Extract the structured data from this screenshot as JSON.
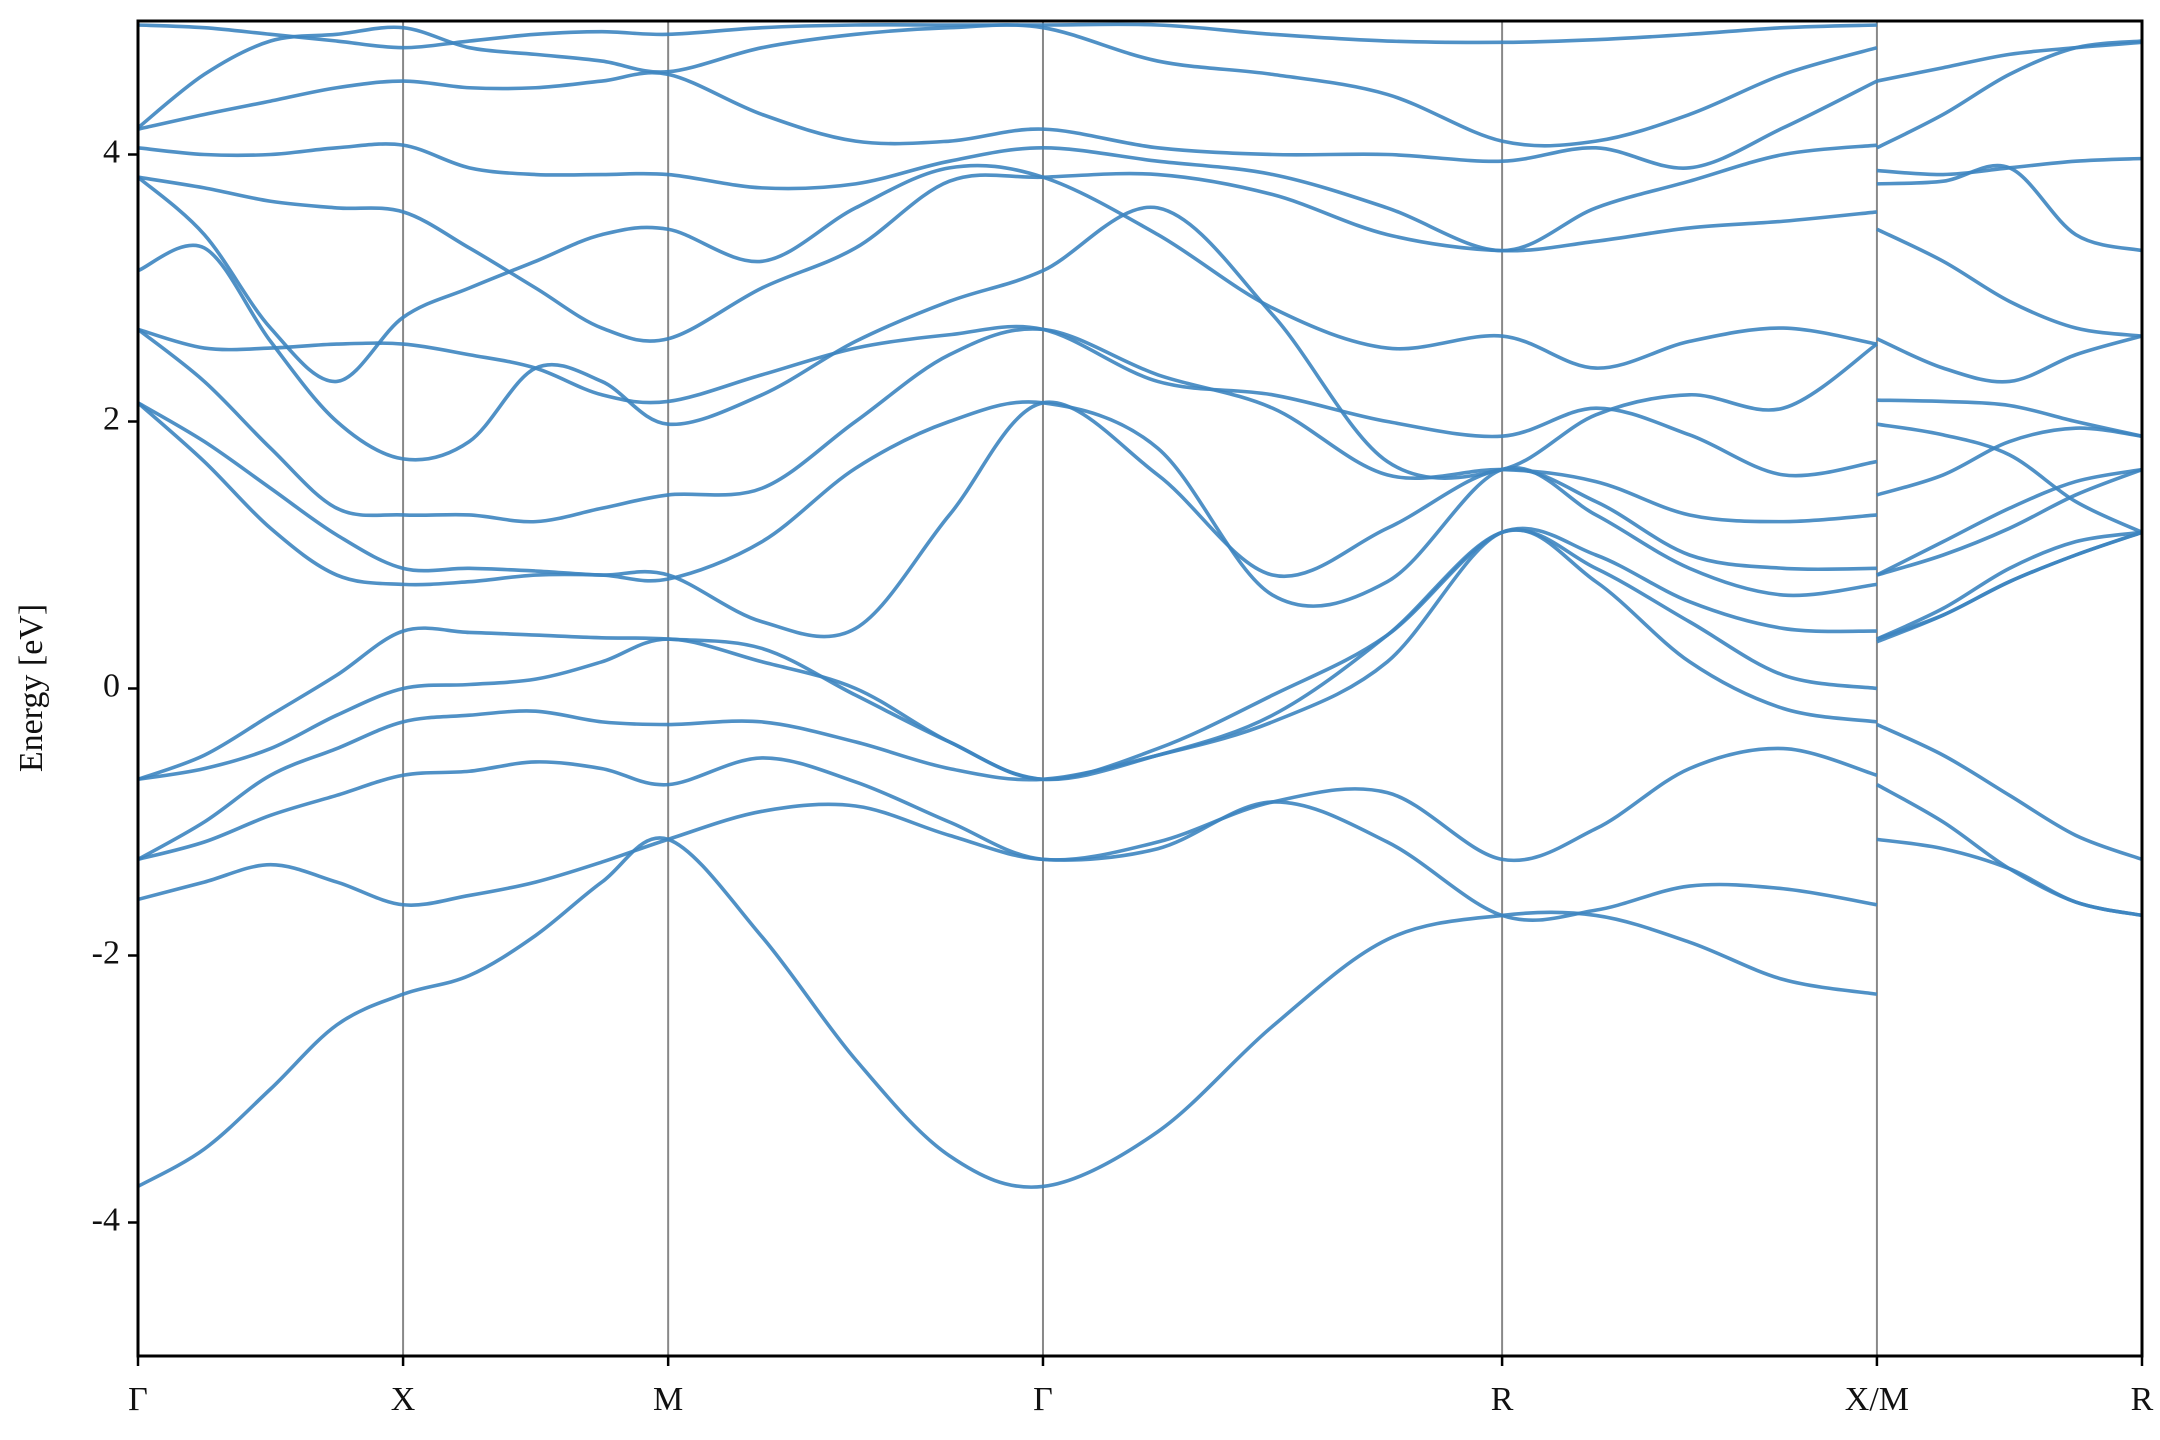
{
  "chart_data": {
    "type": "line",
    "y_label": "Energy [eV]",
    "color": "#3d85c0",
    "xlim": [
      0,
      7.56
    ],
    "ylim": [
      -5,
      5
    ],
    "xticks": [
      {
        "value": 0,
        "label": "Γ"
      },
      {
        "value": 1,
        "label": "X"
      },
      {
        "value": 2,
        "label": "M"
      },
      {
        "value": 3.414,
        "label": "Γ"
      },
      {
        "value": 5.146,
        "label": "R"
      },
      {
        "value": 6.56,
        "label": "X/M"
      },
      {
        "value": 7.56,
        "label": "R"
      }
    ],
    "yticks": [
      -4,
      -2,
      0,
      2,
      4
    ],
    "x_grid": true,
    "x": [
      0,
      0.25,
      0.5,
      0.75,
      1,
      1.25,
      1.5,
      1.75,
      2,
      2.354,
      2.707,
      3.061,
      3.414,
      3.847,
      4.28,
      4.713,
      5.146,
      5.5,
      5.853,
      6.207,
      6.56,
      6.56,
      6.56,
      6.81,
      7.06,
      7.31,
      7.56
    ],
    "series": [
      {
        "values": [
          -3.73,
          -3.45,
          -3.0,
          -2.52,
          -2.29,
          -2.15,
          -1.85,
          -1.45,
          -1.13,
          -1.86,
          -2.78,
          -3.5,
          -3.73,
          -3.32,
          -2.53,
          -1.88,
          -1.7,
          -1.7,
          -1.9,
          -2.18,
          -2.29,
          null,
          -1.13,
          -1.2,
          -1.35,
          -1.6,
          -1.7
        ]
      },
      {
        "values": [
          -1.58,
          -1.45,
          -1.32,
          -1.45,
          -1.62,
          -1.55,
          -1.45,
          -1.3,
          -1.13,
          -0.92,
          -0.88,
          -1.1,
          -1.28,
          -1.2,
          -0.85,
          -1.15,
          -1.7,
          -1.66,
          -1.48,
          -1.5,
          -1.62,
          null,
          -0.72,
          -1.0,
          -1.35,
          -1.6,
          -1.7
        ]
      },
      {
        "values": [
          -1.28,
          -1.15,
          -0.95,
          -0.8,
          -0.65,
          -0.62,
          -0.55,
          -0.6,
          -0.72,
          -0.52,
          -0.7,
          -1.0,
          -1.28,
          -1.15,
          -0.85,
          -0.78,
          -1.28,
          -1.05,
          -0.6,
          -0.45,
          -0.65,
          null,
          -0.27,
          -0.5,
          -0.8,
          -1.1,
          -1.28
        ]
      },
      {
        "values": [
          -1.28,
          -1.0,
          -0.65,
          -0.45,
          -0.25,
          -0.2,
          -0.17,
          -0.25,
          -0.27,
          -0.25,
          -0.4,
          -0.6,
          -0.68,
          -0.5,
          -0.25,
          0.2,
          1.17,
          0.8,
          0.2,
          -0.15,
          -0.25,
          null,
          0.35,
          0.55,
          0.8,
          1.0,
          1.17
        ]
      },
      {
        "values": [
          -0.68,
          -0.6,
          -0.45,
          -0.2,
          0.0,
          0.03,
          0.07,
          0.2,
          0.37,
          0.2,
          0.0,
          -0.4,
          -0.68,
          -0.5,
          -0.2,
          0.4,
          1.17,
          0.9,
          0.5,
          0.1,
          0.0,
          null,
          0.37,
          0.55,
          0.8,
          1.0,
          1.17
        ]
      },
      {
        "values": [
          -0.68,
          -0.5,
          -0.2,
          0.1,
          0.43,
          0.42,
          0.4,
          0.38,
          0.37,
          0.3,
          -0.05,
          -0.4,
          -0.68,
          -0.45,
          -0.05,
          0.4,
          1.17,
          1.0,
          0.65,
          0.45,
          0.43,
          null,
          0.37,
          0.6,
          0.9,
          1.1,
          1.17
        ]
      },
      {
        "values": [
          2.14,
          1.85,
          1.5,
          1.15,
          0.9,
          0.9,
          0.88,
          0.85,
          0.85,
          0.5,
          0.45,
          1.3,
          2.14,
          1.6,
          0.85,
          1.2,
          1.64,
          1.4,
          1.0,
          0.9,
          0.9,
          null,
          0.85,
          1.0,
          1.2,
          1.45,
          1.64
        ]
      },
      {
        "values": [
          2.14,
          1.7,
          1.2,
          0.85,
          0.78,
          0.8,
          0.85,
          0.85,
          0.82,
          1.1,
          1.65,
          2.0,
          2.14,
          1.8,
          0.7,
          0.8,
          1.64,
          1.3,
          0.9,
          0.7,
          0.78,
          null,
          0.85,
          1.1,
          1.35,
          1.55,
          1.64
        ]
      },
      {
        "values": [
          2.69,
          2.3,
          1.8,
          1.35,
          1.3,
          1.3,
          1.25,
          1.35,
          1.45,
          1.5,
          2.0,
          2.5,
          2.69,
          2.35,
          2.1,
          1.6,
          1.64,
          1.55,
          1.3,
          1.25,
          1.3,
          null,
          1.45,
          1.6,
          1.85,
          1.95,
          1.89
        ]
      },
      {
        "values": [
          2.69,
          2.55,
          2.55,
          2.58,
          2.58,
          2.5,
          2.4,
          2.2,
          2.15,
          2.35,
          2.55,
          2.65,
          2.69,
          2.3,
          2.2,
          2.0,
          1.89,
          2.1,
          1.9,
          1.6,
          1.7,
          null,
          2.16,
          2.15,
          2.12,
          2.0,
          1.89
        ]
      },
      {
        "values": [
          3.13,
          3.3,
          2.6,
          2.0,
          1.72,
          1.85,
          2.4,
          2.3,
          1.98,
          2.2,
          2.6,
          2.9,
          3.13,
          3.6,
          2.8,
          1.7,
          1.64,
          2.05,
          2.2,
          2.1,
          2.58,
          null,
          1.98,
          1.9,
          1.75,
          1.4,
          1.17
        ]
      },
      {
        "values": [
          3.83,
          3.4,
          2.7,
          2.3,
          2.78,
          3.0,
          3.2,
          3.4,
          3.44,
          3.2,
          3.6,
          3.9,
          3.83,
          3.4,
          2.85,
          2.55,
          2.64,
          2.4,
          2.6,
          2.7,
          2.58,
          null,
          2.62,
          2.4,
          2.3,
          2.5,
          2.64
        ]
      },
      {
        "values": [
          3.83,
          3.75,
          3.65,
          3.6,
          3.57,
          3.3,
          3.0,
          2.7,
          2.62,
          3.0,
          3.3,
          3.8,
          3.83,
          3.85,
          3.7,
          3.4,
          3.28,
          3.35,
          3.45,
          3.5,
          3.57,
          null,
          3.44,
          3.2,
          2.9,
          2.7,
          2.64
        ]
      },
      {
        "values": [
          4.05,
          4.0,
          4.0,
          4.05,
          4.07,
          3.9,
          3.85,
          3.85,
          3.85,
          3.75,
          3.78,
          3.95,
          4.05,
          3.95,
          3.85,
          3.6,
          3.28,
          3.6,
          3.8,
          4.0,
          4.07,
          null,
          3.78,
          3.8,
          3.9,
          3.4,
          3.28
        ]
      },
      {
        "values": [
          4.19,
          4.3,
          4.4,
          4.5,
          4.55,
          4.5,
          4.5,
          4.55,
          4.6,
          4.3,
          4.1,
          4.1,
          4.19,
          4.05,
          4.0,
          4.0,
          3.95,
          4.05,
          3.9,
          4.2,
          4.55,
          null,
          3.88,
          3.85,
          3.9,
          3.95,
          3.97
        ]
      },
      {
        "values": [
          4.2,
          4.6,
          4.85,
          4.9,
          4.95,
          4.8,
          4.75,
          4.7,
          4.62,
          4.8,
          4.9,
          4.95,
          4.95,
          4.7,
          4.6,
          4.45,
          4.1,
          4.1,
          4.3,
          4.6,
          4.8,
          null,
          4.05,
          4.3,
          4.6,
          4.8,
          4.85
        ]
      },
      {
        "values": [
          4.97,
          4.95,
          4.9,
          4.85,
          4.8,
          4.85,
          4.9,
          4.92,
          4.9,
          4.95,
          4.97,
          4.97,
          4.97,
          4.97,
          4.9,
          4.85,
          4.84,
          4.86,
          4.9,
          4.95,
          4.97,
          null,
          4.55,
          4.65,
          4.75,
          4.8,
          4.84
        ]
      }
    ]
  }
}
